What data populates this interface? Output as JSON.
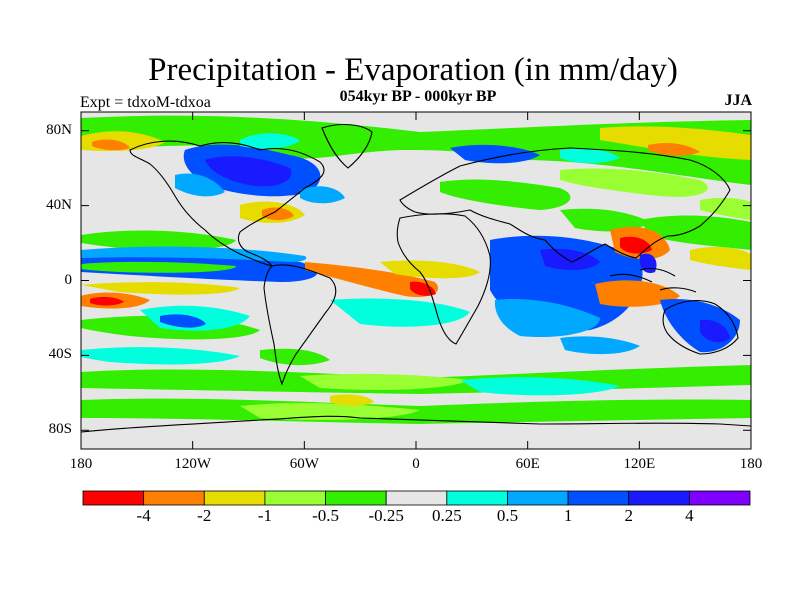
{
  "header": {
    "title": "Precipitation - Evaporation (in mm/day)",
    "subtitle": "054kyr BP - 000kyr BP",
    "experiment": "Expt = tdxoM-tdxoa",
    "season": "JJA"
  },
  "map": {
    "projection": "cylindrical-equidistant",
    "lon_range": [
      -180,
      180
    ],
    "lat_range": [
      -90,
      90
    ],
    "background_color": "#e6e6e6",
    "coastline_color": "#000000",
    "lat_ticks": [
      {
        "value": 80,
        "label": "80N"
      },
      {
        "value": 40,
        "label": "40N"
      },
      {
        "value": 0,
        "label": "0"
      },
      {
        "value": -40,
        "label": "40S"
      },
      {
        "value": -80,
        "label": "80S"
      }
    ],
    "lon_ticks": [
      {
        "value": -180,
        "label": "180"
      },
      {
        "value": -120,
        "label": "120W"
      },
      {
        "value": -60,
        "label": "60W"
      },
      {
        "value": 0,
        "label": "0"
      },
      {
        "value": 60,
        "label": "60E"
      },
      {
        "value": 120,
        "label": "120E"
      },
      {
        "value": 180,
        "label": "180"
      }
    ]
  },
  "colorbar": {
    "colors": [
      "#ff0000",
      "#ff8000",
      "#e6dc00",
      "#99ff33",
      "#33ee00",
      "#e6e6e6",
      "#00ffdd",
      "#00a8ff",
      "#0050ff",
      "#1a1aff",
      "#8000ff"
    ],
    "labels": [
      "-4",
      "-2",
      "-1",
      "-0.5",
      "-0.25",
      "0.25",
      "0.5",
      "1",
      "2",
      "4"
    ]
  }
}
